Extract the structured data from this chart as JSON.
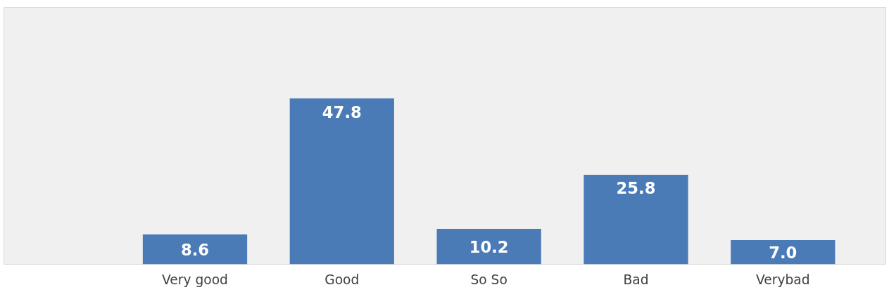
{
  "chart_data": {
    "type": "bar",
    "categories": [
      "Very good",
      "Good",
      "So So",
      "Bad",
      "Verybad"
    ],
    "values": [
      8.6,
      47.8,
      10.2,
      25.8,
      7.0
    ],
    "value_labels": [
      "8.6",
      "47.8",
      "10.2",
      "25.8",
      "7.0"
    ],
    "color": "#4a7bb7"
  }
}
